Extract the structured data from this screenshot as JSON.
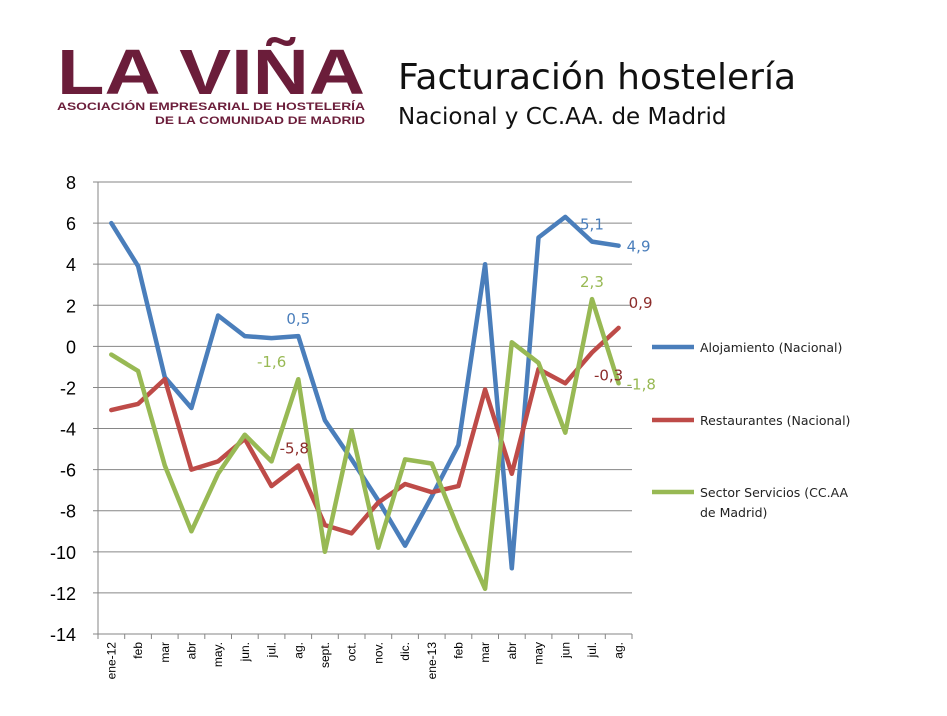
{
  "logo": {
    "name": "LA VIÑA",
    "line1": "ASOCIACIÓN EMPRESARIAL DE HOSTELERÍA",
    "line2": "DE LA COMUNIDAD DE MADRID",
    "color": "#6b1d3a"
  },
  "header": {
    "title": "Facturación hostelería",
    "subtitle": "Nacional y CC.AA. de Madrid"
  },
  "chart_data": {
    "type": "line",
    "categories": [
      "ene-12",
      "feb",
      "mar",
      "abr",
      "may.",
      "jun.",
      "jul.",
      "ag.",
      "sept.",
      "oct.",
      "nov.",
      "dic.",
      "ene-13",
      "feb",
      "mar",
      "abr",
      "may",
      "jun",
      "jul.",
      "ag."
    ],
    "ylim": [
      -14,
      8
    ],
    "yticks": [
      8,
      6,
      4,
      2,
      0,
      -2,
      -4,
      -6,
      -8,
      -10,
      -12,
      -14
    ],
    "grid": true,
    "legend_position": "right",
    "series": [
      {
        "name": "Alojamiento (Nacional)",
        "color": "#4a7ebb",
        "values": [
          6.0,
          3.9,
          -1.5,
          -3.0,
          1.5,
          0.5,
          0.4,
          0.5,
          -3.6,
          -5.5,
          -7.5,
          -9.7,
          -7.3,
          -4.8,
          4.0,
          -10.8,
          5.3,
          6.3,
          5.1,
          4.9
        ]
      },
      {
        "name": "Restaurantes (Nacional)",
        "color": "#be4b48",
        "values": [
          -3.1,
          -2.8,
          -1.6,
          -6.0,
          -5.6,
          -4.5,
          -6.8,
          -5.8,
          -8.7,
          -9.1,
          -7.6,
          -6.7,
          -7.1,
          -6.8,
          -2.1,
          -6.2,
          -1.1,
          -1.8,
          -0.3,
          0.9
        ]
      },
      {
        "name": "Sector Servicios (CC.AA de Madrid)",
        "color": "#98b954",
        "values": [
          -0.4,
          -1.2,
          -5.8,
          -9.0,
          -6.2,
          -4.3,
          -5.6,
          -1.6,
          -10.0,
          -4.1,
          -9.8,
          -5.5,
          -5.7,
          -8.9,
          -11.8,
          0.2,
          -0.8,
          -4.2,
          2.3,
          -1.8
        ]
      }
    ],
    "data_labels": [
      {
        "series": 0,
        "index": 7,
        "text": "0,5",
        "pos": "above"
      },
      {
        "series": 0,
        "index": 18,
        "text": "5,1",
        "pos": "above"
      },
      {
        "series": 0,
        "index": 19,
        "text": "4,9",
        "pos": "right"
      },
      {
        "series": 1,
        "index": 7,
        "text": "-5,8",
        "pos": "above-left"
      },
      {
        "series": 1,
        "index": 18,
        "text": "-0,3",
        "pos": "right-low"
      },
      {
        "series": 1,
        "index": 19,
        "text": "0,9",
        "pos": "above-right"
      },
      {
        "series": 2,
        "index": 7,
        "text": "-1,6",
        "pos": "left-above"
      },
      {
        "series": 2,
        "index": 18,
        "text": "2,3",
        "pos": "above"
      },
      {
        "series": 2,
        "index": 19,
        "text": "-1,8",
        "pos": "right"
      }
    ]
  }
}
